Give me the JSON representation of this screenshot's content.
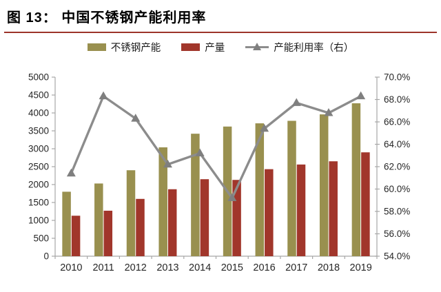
{
  "header": {
    "title": "图 13： 中国不锈钢产能利用率"
  },
  "colors": {
    "capacity_bar": "#99904F",
    "production_bar": "#A1362B",
    "utilization_line": "#8C8C8C",
    "utilization_marker": "#7F7F7F",
    "title_rule": "#9C3329",
    "axis": "#A6A6A6",
    "tick_text": "#262626"
  },
  "legend": {
    "items": [
      {
        "label": "不锈钢产能",
        "type": "bar"
      },
      {
        "label": "产量",
        "type": "bar"
      },
      {
        "label": "产能利用率（右）",
        "type": "line"
      }
    ]
  },
  "chart_data": {
    "type": "bar",
    "subtype": "grouped-bars-with-line",
    "title": "中国不锈钢产能利用率",
    "grid": false,
    "legend_position": "top",
    "categories": [
      "2010",
      "2011",
      "2012",
      "2013",
      "2014",
      "2015",
      "2016",
      "2017",
      "2018",
      "2019"
    ],
    "series": [
      {
        "name": "不锈钢产能",
        "type": "bar",
        "axis": "left",
        "values": [
          1800,
          2030,
          2400,
          3040,
          3420,
          3620,
          3710,
          3780,
          3960,
          4270
        ]
      },
      {
        "name": "产量",
        "type": "bar",
        "axis": "left",
        "values": [
          1130,
          1270,
          1600,
          1870,
          2150,
          2130,
          2430,
          2560,
          2650,
          2900
        ]
      },
      {
        "name": "产能利用率（右）",
        "type": "line",
        "axis": "right",
        "values": [
          61.4,
          68.3,
          66.3,
          62.2,
          63.2,
          59.2,
          65.4,
          67.7,
          66.8,
          68.3
        ]
      }
    ],
    "left_axis": {
      "min": 0,
      "max": 5000,
      "step": 500,
      "ticks": [
        "0",
        "500",
        "1000",
        "1500",
        "2000",
        "2500",
        "3000",
        "3500",
        "4000",
        "4500",
        "5000"
      ]
    },
    "right_axis": {
      "min": 54,
      "max": 70,
      "step": 2,
      "ticks": [
        "54.0%",
        "56.0%",
        "58.0%",
        "60.0%",
        "62.0%",
        "64.0%",
        "66.0%",
        "68.0%",
        "70.0%"
      ]
    }
  }
}
